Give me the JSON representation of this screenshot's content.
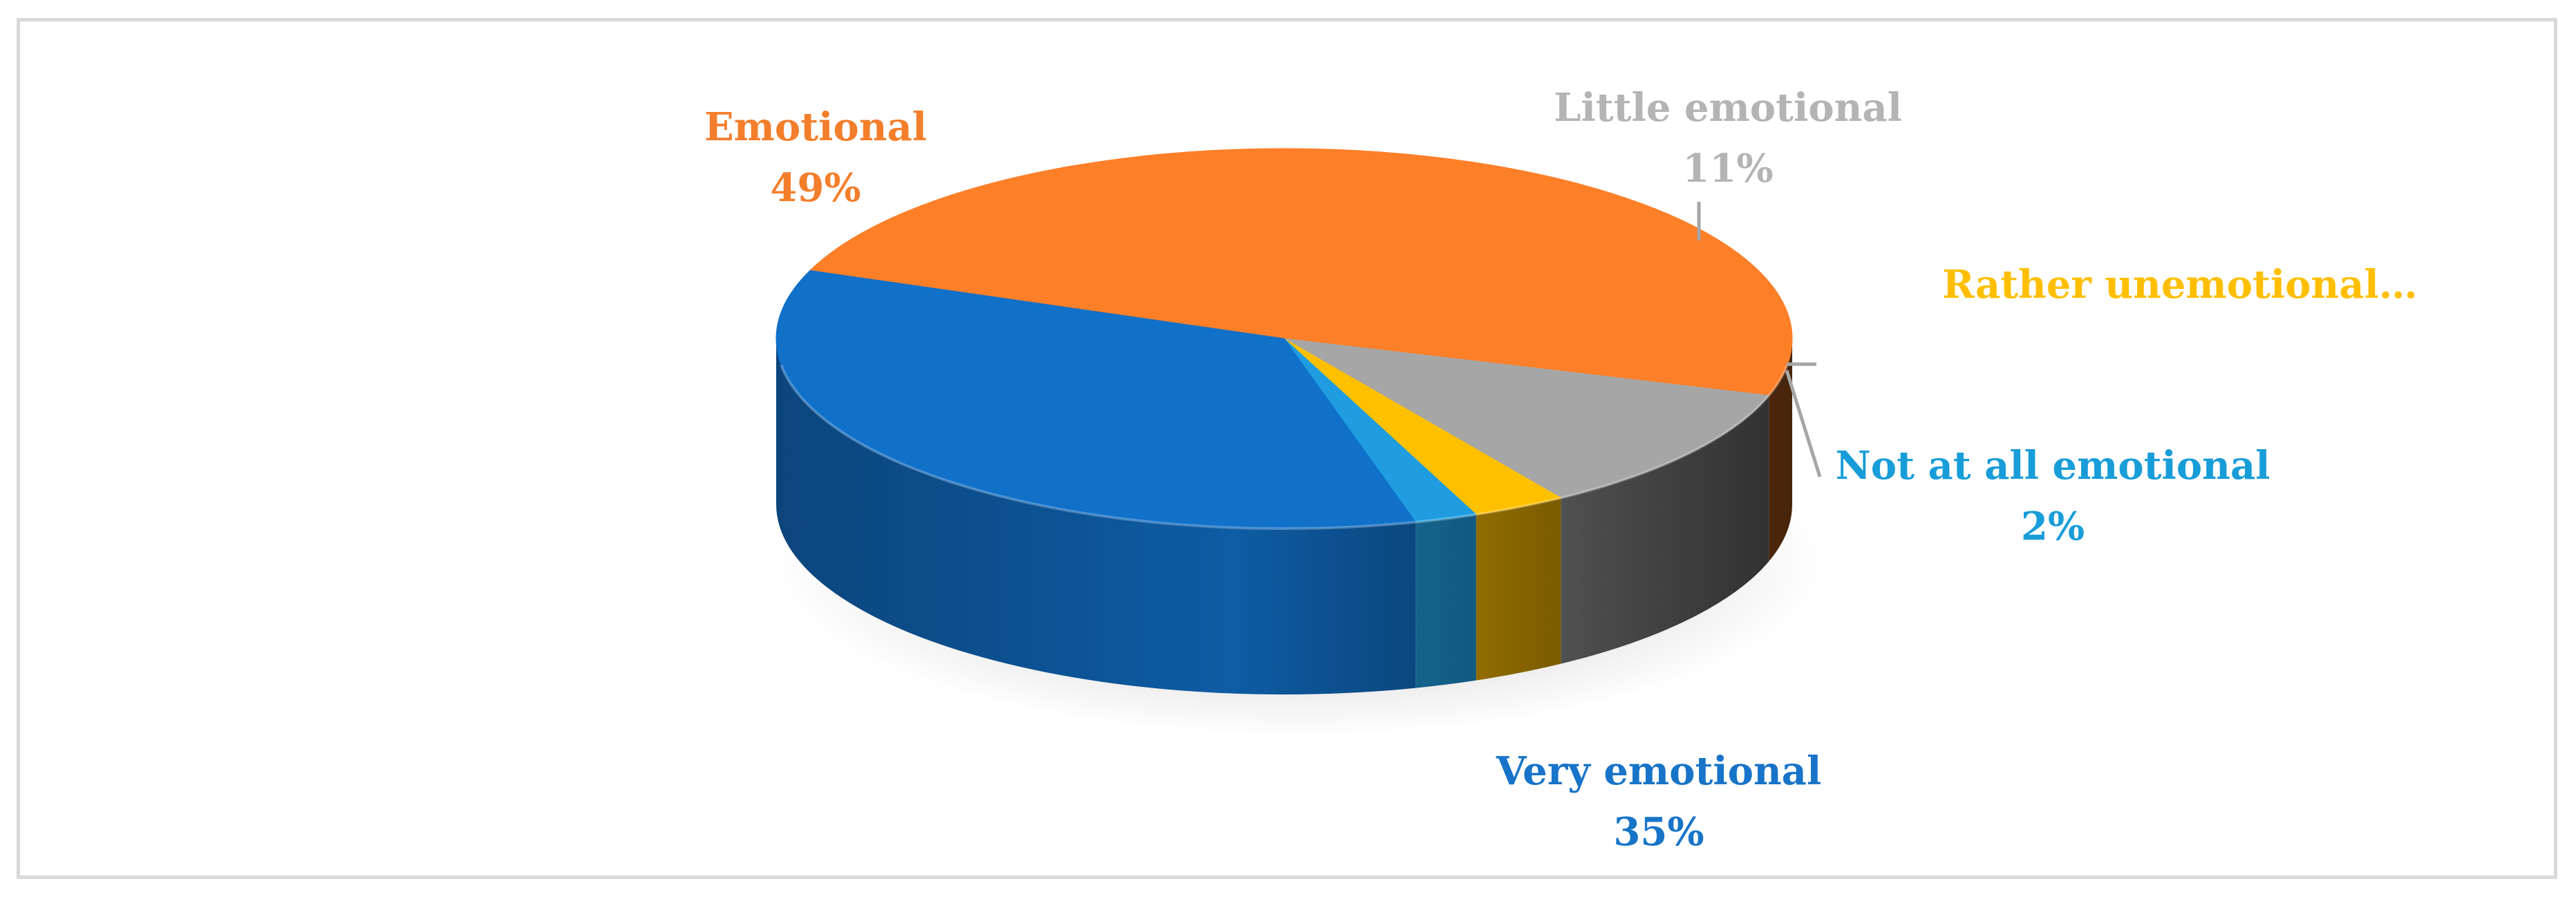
{
  "chart_data": {
    "type": "pie",
    "style": "3d",
    "categories": [
      "Emotional",
      "Little emotional",
      "Rather unemotional…",
      "Not at all emotional",
      "Very emotional"
    ],
    "values": [
      49,
      11,
      3,
      2,
      35
    ],
    "value_labels": [
      "49%",
      "11%",
      "",
      "2%",
      "35%"
    ],
    "colors": [
      "#fd7f28",
      "#a6a6a6",
      "#ffc000",
      "#1f9de0",
      "#1170c8"
    ],
    "label_colors": [
      "#f37e2b",
      "#b4b4b4",
      "#ffbf00",
      "#189dd9",
      "#1874c8"
    ],
    "legend": "none",
    "title": ""
  }
}
